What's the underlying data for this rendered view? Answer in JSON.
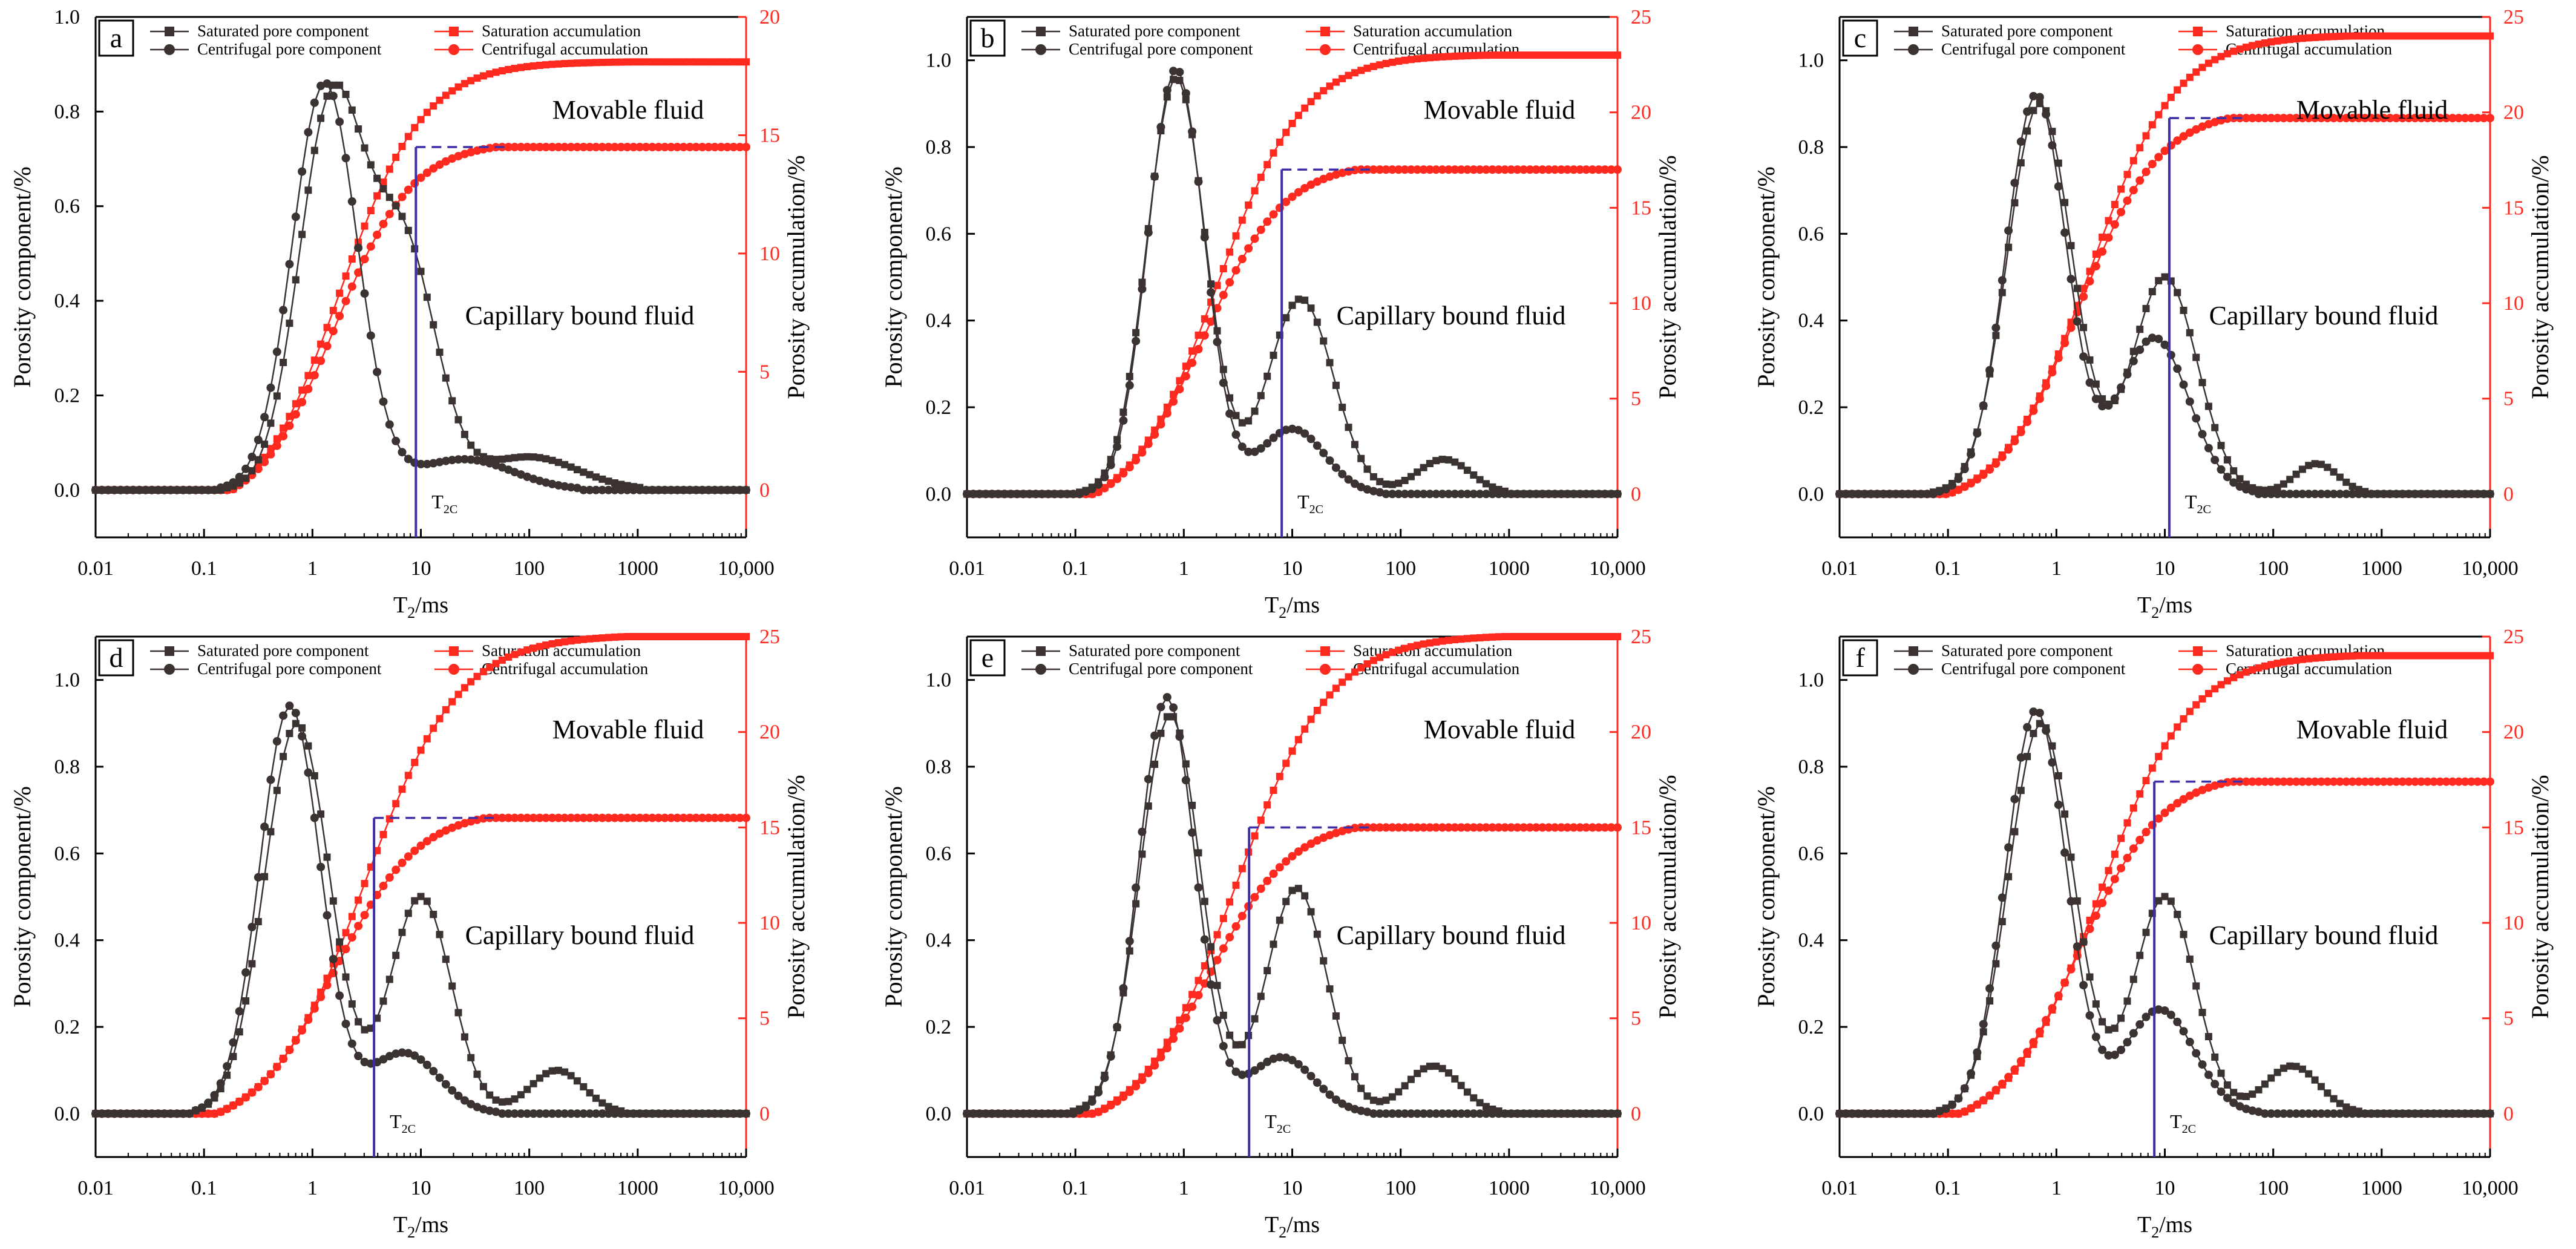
{
  "figure": {
    "type": "nmr_t2_panels",
    "colors": {
      "component": "#3a3331",
      "accumulation": "#ff2a1f",
      "cutoff": "#3d2fa8"
    }
  },
  "chart_data": [
    {
      "type": "line",
      "panel_label": "a",
      "xlabel": "T₂/ms",
      "ylabel_left": "Porosity component/%",
      "ylabel_right": "Porosity accumulation/%",
      "x_scale": "log",
      "xlim": [
        0.01,
        10000
      ],
      "x_ticks": [
        "0.01",
        "0.1",
        "1",
        "10",
        "100",
        "1000",
        "10,000"
      ],
      "ylim_left": [
        -0.1,
        1.0
      ],
      "ylim_right": [
        -2,
        20
      ],
      "yticks_left": [
        0.0,
        0.2,
        0.4,
        0.6,
        0.8,
        1.0
      ],
      "yticks_right": [
        0,
        5,
        10,
        15,
        20
      ],
      "legend": [
        "Saturated pore component",
        "Centrifugal pore component",
        "Saturation accumulation",
        "Centrifugal accumulation"
      ],
      "annotations": {
        "movable": "Movable fluid",
        "capillary": "Capillary bound fluid",
        "t2c": "T2C"
      },
      "t2c": 9,
      "t2c_level": 14.5,
      "sat_comp": {
        "peaks": [
          [
            1.5,
            0.81,
            0.3
          ],
          [
            7,
            0.5,
            0.3
          ],
          [
            100,
            0.07,
            0.45
          ]
        ]
      },
      "cen_comp": {
        "peaks": [
          [
            1.3,
            0.86,
            0.3
          ],
          [
            25,
            0.065,
            0.45
          ]
        ]
      },
      "sat_acc": {
        "start": 0.18,
        "end": 1000,
        "mid": 1.8,
        "k": 2.6,
        "lo": 0,
        "hi": 18.1
      },
      "cen_acc": {
        "start": 0.18,
        "end": 50,
        "mid": 1.6,
        "k": 2.8,
        "lo": 0,
        "hi": 14.5
      }
    },
    {
      "type": "line",
      "panel_label": "b",
      "xlabel": "T₂/ms",
      "ylabel_left": "Porosity component/%",
      "ylabel_right": "Porosity accumulation/%",
      "x_scale": "log",
      "xlim": [
        0.01,
        10000
      ],
      "x_ticks": [
        "0.01",
        "0.1",
        "1",
        "10",
        "100",
        "1000",
        "10,000"
      ],
      "ylim_left": [
        -0.1,
        1.1
      ],
      "ylim_right": [
        -2.27,
        25
      ],
      "yticks_left": [
        0.0,
        0.2,
        0.4,
        0.6,
        0.8,
        1.0
      ],
      "yticks_right": [
        0,
        5,
        10,
        15,
        20,
        25
      ],
      "legend": [
        "Saturated pore component",
        "Centrifugal pore component",
        "Saturation accumulation",
        "Centrifugal accumulation"
      ],
      "annotations": {
        "movable": "Movable fluid",
        "capillary": "Capillary bound fluid",
        "t2c": "T2C"
      },
      "t2c": 8,
      "t2c_level": 17,
      "sat_comp": {
        "peaks": [
          [
            0.85,
            0.96,
            0.27
          ],
          [
            12,
            0.45,
            0.3
          ],
          [
            250,
            0.08,
            0.25
          ]
        ]
      },
      "cen_comp": {
        "peaks": [
          [
            0.85,
            0.98,
            0.26
          ],
          [
            10,
            0.15,
            0.3
          ]
        ]
      },
      "sat_acc": {
        "start": 0.15,
        "end": 700,
        "mid": 2.0,
        "k": 2.5,
        "lo": 0,
        "hi": 23
      },
      "cen_acc": {
        "start": 0.15,
        "end": 40,
        "mid": 1.5,
        "k": 2.7,
        "lo": 0,
        "hi": 17
      }
    },
    {
      "type": "line",
      "panel_label": "c",
      "xlabel": "T₂/ms",
      "ylabel_left": "Porosity component/%",
      "ylabel_right": "Porosity accumulation/%",
      "x_scale": "log",
      "xlim": [
        0.01,
        10000
      ],
      "x_ticks": [
        "0.01",
        "0.1",
        "1",
        "10",
        "100",
        "1000",
        "10,000"
      ],
      "ylim_left": [
        -0.1,
        1.1
      ],
      "ylim_right": [
        -2.27,
        25
      ],
      "yticks_left": [
        0.0,
        0.2,
        0.4,
        0.6,
        0.8,
        1.0
      ],
      "yticks_right": [
        0,
        5,
        10,
        15,
        20,
        25
      ],
      "legend": [
        "Saturated pore component",
        "Centrifugal pore component",
        "Saturation accumulation",
        "Centrifugal accumulation"
      ],
      "annotations": {
        "movable": "Movable fluid",
        "capillary": "Capillary bound fluid",
        "t2c": "T2C"
      },
      "t2c": 11,
      "t2c_level": 19.7,
      "sat_comp": {
        "peaks": [
          [
            0.7,
            0.9,
            0.3
          ],
          [
            10,
            0.5,
            0.3
          ],
          [
            250,
            0.07,
            0.2
          ]
        ]
      },
      "cen_comp": {
        "peaks": [
          [
            0.65,
            0.92,
            0.28
          ],
          [
            8,
            0.36,
            0.32
          ]
        ]
      },
      "sat_acc": {
        "start": 0.1,
        "end": 500,
        "mid": 2.0,
        "k": 2.5,
        "lo": 0,
        "hi": 24
      },
      "cen_acc": {
        "start": 0.1,
        "end": 40,
        "mid": 1.6,
        "k": 2.7,
        "lo": 0,
        "hi": 19.7
      }
    },
    {
      "type": "line",
      "panel_label": "d",
      "xlabel": "T₂/ms",
      "ylabel_left": "Porosity component/%",
      "ylabel_right": "Porosity accumulation/%",
      "x_scale": "log",
      "xlim": [
        0.01,
        10000
      ],
      "x_ticks": [
        "0.01",
        "0.1",
        "1",
        "10",
        "100",
        "1000",
        "10,000"
      ],
      "ylim_left": [
        -0.1,
        1.1
      ],
      "ylim_right": [
        -2.27,
        25
      ],
      "yticks_left": [
        0.0,
        0.2,
        0.4,
        0.6,
        0.8,
        1.0
      ],
      "yticks_right": [
        0,
        5,
        10,
        15,
        20,
        25
      ],
      "legend": [
        "Saturated pore component",
        "Centrifugal pore component",
        "Saturation accumulation",
        "Centrifugal accumulation"
      ],
      "annotations": {
        "movable": "Movable fluid",
        "capillary": "Capillary bound fluid",
        "t2c": "T2C"
      },
      "t2c": 3.7,
      "t2c_level": 15.5,
      "sat_comp": {
        "peaks": [
          [
            0.72,
            0.9,
            0.3
          ],
          [
            10,
            0.5,
            0.28
          ],
          [
            180,
            0.1,
            0.25
          ]
        ]
      },
      "cen_comp": {
        "peaks": [
          [
            0.62,
            0.94,
            0.28
          ],
          [
            7,
            0.14,
            0.32
          ]
        ]
      },
      "sat_acc": {
        "start": 0.13,
        "end": 800,
        "mid": 3.0,
        "k": 2.3,
        "lo": 0,
        "hi": 25
      },
      "cen_acc": {
        "start": 0.13,
        "end": 40,
        "mid": 1.6,
        "k": 2.6,
        "lo": 0,
        "hi": 15.5
      }
    },
    {
      "type": "line",
      "panel_label": "e",
      "xlabel": "T₂/ms",
      "ylabel_left": "Porosity component/%",
      "ylabel_right": "Porosity accumulation/%",
      "x_scale": "log",
      "xlim": [
        0.01,
        10000
      ],
      "x_ticks": [
        "0.01",
        "0.1",
        "1",
        "10",
        "100",
        "1000",
        "10,000"
      ],
      "ylim_left": [
        -0.1,
        1.1
      ],
      "ylim_right": [
        -2.27,
        25
      ],
      "yticks_left": [
        0.0,
        0.2,
        0.4,
        0.6,
        0.8,
        1.0
      ],
      "yticks_right": [
        0,
        5,
        10,
        15,
        20,
        25
      ],
      "legend": [
        "Saturated pore component",
        "Centrifugal pore component",
        "Saturation accumulation",
        "Centrifugal accumulation"
      ],
      "annotations": {
        "movable": "Movable fluid",
        "capillary": "Capillary bound fluid",
        "t2c": "T2C"
      },
      "t2c": 4,
      "t2c_level": 15,
      "sat_comp": {
        "peaks": [
          [
            0.75,
            0.92,
            0.28
          ],
          [
            11,
            0.52,
            0.28
          ],
          [
            200,
            0.11,
            0.25
          ]
        ]
      },
      "cen_comp": {
        "peaks": [
          [
            0.7,
            0.96,
            0.26
          ],
          [
            8,
            0.13,
            0.3
          ]
        ]
      },
      "sat_acc": {
        "start": 0.15,
        "end": 900,
        "mid": 3.0,
        "k": 2.3,
        "lo": 0,
        "hi": 25
      },
      "cen_acc": {
        "start": 0.15,
        "end": 40,
        "mid": 1.7,
        "k": 2.6,
        "lo": 0,
        "hi": 15
      }
    },
    {
      "type": "line",
      "panel_label": "f",
      "xlabel": "T₂/ms",
      "ylabel_left": "Porosity component/%",
      "ylabel_right": "Porosity accumulation/%",
      "x_scale": "log",
      "xlim": [
        0.01,
        10000
      ],
      "x_ticks": [
        "0.01",
        "0.1",
        "1",
        "10",
        "100",
        "1000",
        "10,000"
      ],
      "ylim_left": [
        -0.1,
        1.1
      ],
      "ylim_right": [
        -2.27,
        25
      ],
      "yticks_left": [
        0.0,
        0.2,
        0.4,
        0.6,
        0.8,
        1.0
      ],
      "yticks_right": [
        0,
        5,
        10,
        15,
        20,
        25
      ],
      "legend": [
        "Saturated pore component",
        "Centrifugal pore component",
        "Saturation accumulation",
        "Centrifugal accumulation"
      ],
      "annotations": {
        "movable": "Movable fluid",
        "capillary": "Capillary bound fluid",
        "t2c": "T2C"
      },
      "t2c": 8,
      "t2c_level": 17.4,
      "sat_comp": {
        "peaks": [
          [
            0.72,
            0.9,
            0.3
          ],
          [
            10,
            0.5,
            0.28
          ],
          [
            150,
            0.11,
            0.25
          ]
        ]
      },
      "cen_comp": {
        "peaks": [
          [
            0.65,
            0.93,
            0.28
          ],
          [
            9,
            0.24,
            0.32
          ]
        ]
      },
      "sat_acc": {
        "start": 0.13,
        "end": 600,
        "mid": 2.5,
        "k": 2.4,
        "lo": 0,
        "hi": 24
      },
      "cen_acc": {
        "start": 0.13,
        "end": 40,
        "mid": 1.6,
        "k": 2.6,
        "lo": 0,
        "hi": 17.4
      }
    }
  ]
}
